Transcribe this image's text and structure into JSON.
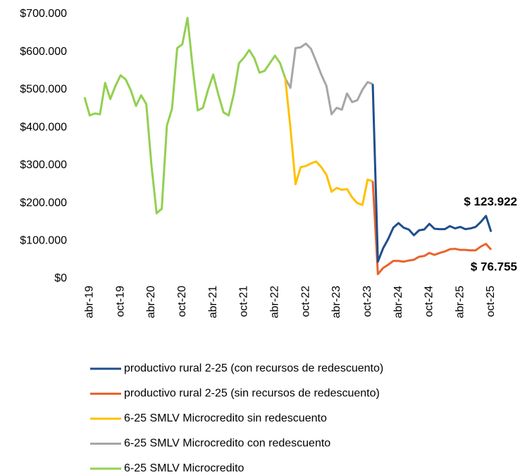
{
  "chart_data": {
    "type": "line",
    "categories": [
      null,
      "abr-19",
      null,
      null,
      null,
      null,
      null,
      "oct-19",
      null,
      null,
      null,
      null,
      null,
      "abr-20",
      null,
      null,
      null,
      null,
      null,
      "oct-20",
      null,
      null,
      null,
      null,
      null,
      "abr-21",
      null,
      null,
      null,
      null,
      null,
      "oct-21",
      null,
      null,
      null,
      null,
      null,
      "abr-22",
      null,
      null,
      null,
      null,
      null,
      "oct-22",
      null,
      null,
      null,
      null,
      null,
      "abr-23",
      null,
      null,
      null,
      null,
      null,
      "oct-23",
      null,
      null,
      null,
      null,
      null,
      "abr-24",
      null,
      null,
      null,
      null,
      null,
      "oct-24",
      null,
      null,
      null,
      null,
      null,
      "abr-25",
      null,
      null,
      null,
      null,
      null,
      "oct-25"
    ],
    "ylim": [
      0,
      700000
    ],
    "yticks": [
      {
        "value": 0,
        "label": "$0"
      },
      {
        "value": 100000,
        "label": "$100.000"
      },
      {
        "value": 200000,
        "label": "$200.000"
      },
      {
        "value": 300000,
        "label": "$300.000"
      },
      {
        "value": 400000,
        "label": "$400.000"
      },
      {
        "value": 500000,
        "label": "$500.000"
      },
      {
        "value": 600000,
        "label": "$600.000"
      },
      {
        "value": 700000,
        "label": "$700.000"
      }
    ],
    "legend": "bottom",
    "series": [
      {
        "name": "productivo rural 2-25 (con recursos de redescuento)",
        "color": "#1f4e8c",
        "values": [
          null,
          null,
          null,
          null,
          null,
          null,
          null,
          null,
          null,
          null,
          null,
          null,
          null,
          null,
          null,
          null,
          null,
          null,
          null,
          null,
          null,
          null,
          null,
          null,
          null,
          null,
          null,
          null,
          null,
          null,
          null,
          null,
          null,
          null,
          null,
          null,
          null,
          null,
          null,
          null,
          null,
          null,
          null,
          null,
          null,
          null,
          null,
          null,
          null,
          null,
          null,
          null,
          null,
          null,
          null,
          null,
          515000,
          45000,
          80000,
          105000,
          135000,
          147000,
          135000,
          130000,
          115000,
          128000,
          130000,
          145000,
          132000,
          131000,
          131000,
          139000,
          133000,
          137000,
          131000,
          133000,
          137000,
          150000,
          166000,
          123922
        ],
        "value_labels": [
          null,
          null,
          null,
          null,
          null,
          null,
          null,
          null,
          null,
          null,
          null,
          null,
          null,
          null,
          null,
          null,
          null,
          null,
          null,
          null,
          null,
          null,
          null,
          null,
          null,
          null,
          null,
          null,
          null,
          null,
          null,
          null,
          null,
          null,
          null,
          null,
          null,
          null,
          null,
          null,
          null,
          null,
          null,
          null,
          null,
          null,
          null,
          null,
          null,
          null,
          null,
          null,
          null,
          null,
          null,
          null,
          null,
          null,
          null,
          null,
          null,
          null,
          null,
          null,
          null,
          null,
          null,
          null,
          null,
          null,
          null,
          null,
          null,
          null,
          null,
          null,
          null,
          null,
          null,
          "$ 123.922"
        ]
      },
      {
        "name": "productivo rural 2-25 (sin recursos de redescuento)",
        "color": "#e8642c",
        "values": [
          null,
          null,
          null,
          null,
          null,
          null,
          null,
          null,
          null,
          null,
          null,
          null,
          null,
          null,
          null,
          null,
          null,
          null,
          null,
          null,
          null,
          null,
          null,
          null,
          null,
          null,
          null,
          null,
          null,
          null,
          null,
          null,
          null,
          null,
          null,
          null,
          null,
          null,
          null,
          null,
          null,
          null,
          null,
          null,
          null,
          null,
          null,
          null,
          null,
          null,
          null,
          null,
          null,
          null,
          null,
          null,
          258000,
          12000,
          28000,
          37000,
          47000,
          47000,
          45000,
          48000,
          50000,
          58000,
          60000,
          68000,
          63000,
          68000,
          72000,
          78000,
          79000,
          76000,
          76000,
          75000,
          75000,
          85000,
          92000,
          76755
        ],
        "value_labels": [
          null,
          null,
          null,
          null,
          null,
          null,
          null,
          null,
          null,
          null,
          null,
          null,
          null,
          null,
          null,
          null,
          null,
          null,
          null,
          null,
          null,
          null,
          null,
          null,
          null,
          null,
          null,
          null,
          null,
          null,
          null,
          null,
          null,
          null,
          null,
          null,
          null,
          null,
          null,
          null,
          null,
          null,
          null,
          null,
          null,
          null,
          null,
          null,
          null,
          null,
          null,
          null,
          null,
          null,
          null,
          null,
          null,
          null,
          null,
          null,
          null,
          null,
          null,
          null,
          null,
          null,
          null,
          null,
          null,
          null,
          null,
          null,
          null,
          null,
          null,
          null,
          null,
          null,
          null,
          "$ 76.755"
        ]
      },
      {
        "name": "6-25 SMLV Microcredito sin redescuento",
        "color": "#ffc000",
        "values": [
          null,
          null,
          null,
          null,
          null,
          null,
          null,
          null,
          null,
          null,
          null,
          null,
          null,
          null,
          null,
          null,
          null,
          null,
          null,
          null,
          null,
          null,
          null,
          null,
          null,
          null,
          null,
          null,
          null,
          null,
          null,
          null,
          null,
          null,
          null,
          null,
          null,
          null,
          null,
          530000,
          400000,
          250000,
          295000,
          298000,
          305000,
          310000,
          295000,
          275000,
          230000,
          240000,
          235000,
          237000,
          215000,
          200000,
          195000,
          262000,
          258000,
          null,
          null,
          null,
          null,
          null,
          null,
          null,
          null,
          null,
          null,
          null,
          null,
          null,
          null,
          null,
          null,
          null,
          null,
          null,
          null,
          null,
          null,
          null
        ]
      },
      {
        "name": "6-25 SMLV Microcredito con redescuento",
        "color": "#a6a6a6",
        "values": [
          null,
          null,
          null,
          null,
          null,
          null,
          null,
          null,
          null,
          null,
          null,
          null,
          null,
          null,
          null,
          null,
          null,
          null,
          null,
          null,
          null,
          null,
          null,
          null,
          null,
          null,
          null,
          null,
          null,
          null,
          null,
          null,
          null,
          null,
          null,
          null,
          null,
          null,
          null,
          530000,
          505000,
          610000,
          612000,
          622000,
          608000,
          575000,
          540000,
          510000,
          435000,
          452000,
          447000,
          490000,
          467000,
          472000,
          500000,
          520000,
          515000,
          null,
          null,
          null,
          null,
          null,
          null,
          null,
          null,
          null,
          null,
          null,
          null,
          null,
          null,
          null,
          null,
          null,
          null,
          null,
          null,
          null,
          null,
          null
        ]
      },
      {
        "name": "6-25 SMLV Microcredito",
        "color": "#92d050",
        "values": [
          480000,
          432000,
          437000,
          435000,
          518000,
          475000,
          510000,
          538000,
          527000,
          498000,
          457000,
          485000,
          462000,
          300000,
          173000,
          185000,
          405000,
          450000,
          610000,
          620000,
          690000,
          560000,
          445000,
          452000,
          500000,
          540000,
          487000,
          440000,
          432000,
          488000,
          570000,
          585000,
          605000,
          583000,
          545000,
          550000,
          570000,
          590000,
          570000,
          530000,
          null,
          null,
          null,
          null,
          null,
          null,
          null,
          null,
          null,
          null,
          null,
          null,
          null,
          null,
          null,
          null,
          null,
          null,
          null,
          null,
          null,
          null,
          null,
          null,
          null,
          null,
          null,
          null,
          null,
          null,
          null,
          null,
          null,
          null,
          null,
          null,
          null,
          null,
          null,
          null
        ]
      }
    ]
  }
}
